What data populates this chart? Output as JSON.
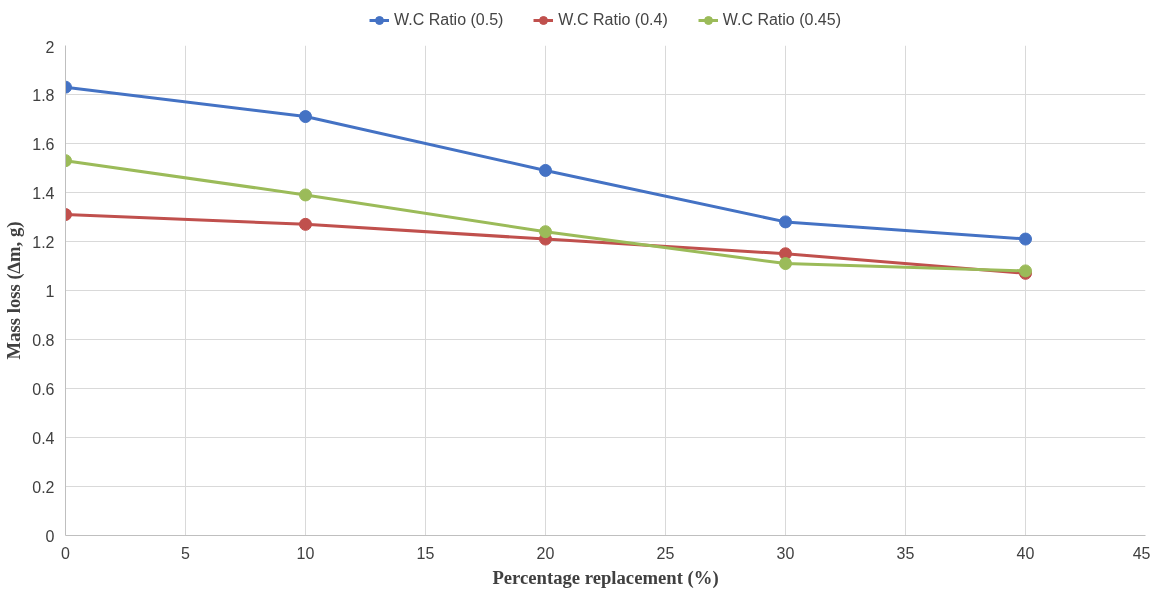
{
  "chart_data": {
    "type": "line",
    "xlabel": "Percentage replacement (%)",
    "ylabel": "Mass loss (∆m, g)",
    "x": [
      0,
      10,
      20,
      30,
      40
    ],
    "series": [
      {
        "name": "W.C Ratio (0.5)",
        "color": "#4472c4",
        "values": [
          1.83,
          1.71,
          1.49,
          1.28,
          1.21
        ]
      },
      {
        "name": "W.C Ratio (0.4)",
        "color": "#c0504d",
        "values": [
          1.31,
          1.27,
          1.21,
          1.15,
          1.07
        ]
      },
      {
        "name": "W.C Ratio (0.45)",
        "color": "#9bbb59",
        "values": [
          1.53,
          1.39,
          1.24,
          1.11,
          1.08
        ]
      }
    ],
    "xlim": [
      0,
      45
    ],
    "xticks": [
      0,
      5,
      10,
      15,
      20,
      25,
      30,
      35,
      40,
      45
    ],
    "ylim": [
      0,
      2
    ],
    "yticks": [
      0,
      0.2,
      0.4,
      0.6,
      0.8,
      1,
      1.2,
      1.4,
      1.6,
      1.8,
      2
    ],
    "grid": true,
    "legend": "top",
    "marker": "circle",
    "line_style": "solid"
  }
}
